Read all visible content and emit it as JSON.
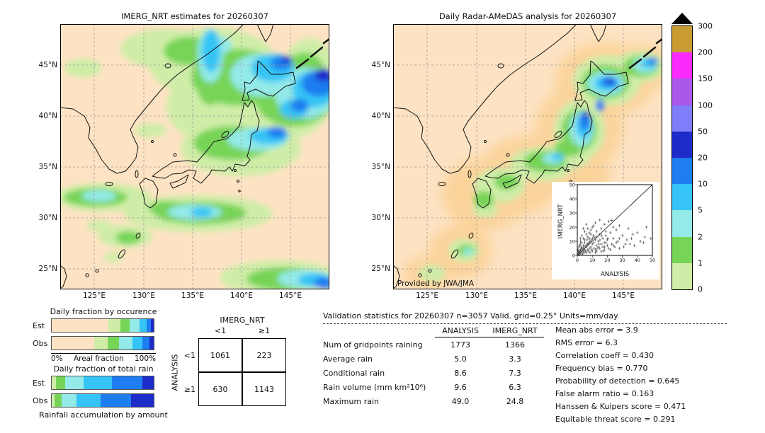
{
  "maps": {
    "background": "#fde3c3",
    "imerg": {
      "title": "IMERG_NRT estimates for 20260307"
    },
    "radar": {
      "title": "Daily Radar-AMeDAS analysis for 20260307",
      "attribution": "Provided by JWA/JMA"
    },
    "yticks": [
      "45°N",
      "40°N",
      "35°N",
      "30°N",
      "25°N"
    ],
    "xticks": [
      "125°E",
      "130°E",
      "135°E",
      "140°E",
      "145°E"
    ]
  },
  "colorbar": {
    "labels": [
      "300",
      "200",
      "150",
      "100",
      "50",
      "20",
      "10",
      "5",
      "2",
      "1",
      "0"
    ],
    "colors": [
      "#c99b33",
      "#fb2cfb",
      "#a958e8",
      "#7e7efa",
      "#1d2bc9",
      "#1e7df0",
      "#35c4f5",
      "#93eae8",
      "#77d457",
      "#cfeda7"
    ],
    "overflow_color": "#000000"
  },
  "inset": {
    "xlabel": "ANALYSIS",
    "ylabel": "IMERG_NRT",
    "ticks": [
      0,
      10,
      20,
      30,
      40,
      50
    ]
  },
  "fraction_charts": {
    "axis": {
      "left": "0%",
      "center": "Areal fraction",
      "right": "100%"
    },
    "footer": "Rainfall accumulation by amount"
  },
  "validation": {
    "title": "Validation statistics for 20260307  n=3057 Valid. grid=0.25° Units=mm/day",
    "scores": [
      {
        "label": "Mean abs error",
        "value": "3.9"
      },
      {
        "label": "RMS error",
        "value": "6.3"
      },
      {
        "label": "Correlation coeff",
        "value": "0.430"
      },
      {
        "label": "Frequency bias",
        "value": "0.770"
      },
      {
        "label": "Probability of detection",
        "value": "0.645"
      },
      {
        "label": "False alarm ratio",
        "value": "0.163"
      },
      {
        "label": "Hanssen & Kuipers score",
        "value": "0.471"
      },
      {
        "label": "Equitable threat score",
        "value": "0.291"
      }
    ]
  },
  "chart_data": [
    {
      "type": "table",
      "name": "contingency_table_gridpoints",
      "col_group": "IMERG_NRT",
      "row_group": "ANALYSIS",
      "cols": [
        "<1",
        "≥1"
      ],
      "rows": [
        "<1",
        "≥1"
      ],
      "values": [
        [
          1061,
          223
        ],
        [
          630,
          1143
        ]
      ]
    },
    {
      "type": "table",
      "name": "validation_statistics",
      "columns": [
        "ANALYSIS",
        "IMERG_NRT"
      ],
      "rows": [
        [
          "Num of gridpoints raining",
          "1773",
          "1366"
        ],
        [
          "Average rain",
          "5.0",
          "3.3"
        ],
        [
          "Conditional rain",
          "8.6",
          "7.3"
        ],
        [
          "Rain volume (mm km²10⁶)",
          "9.6",
          "6.3"
        ],
        [
          "Maximum rain",
          "49.0",
          "24.8"
        ]
      ]
    },
    {
      "type": "bar",
      "name": "daily_fraction_by_occurrence",
      "title": "Daily fraction by occurence",
      "stacked": true,
      "orientation": "horizontal",
      "categories": [
        "Est",
        "Obs"
      ],
      "xlabel": "Areal fraction",
      "xlim": [
        0,
        100
      ],
      "series": [
        {
          "name": "<1",
          "color": "#fde3c3",
          "values": [
            55.3,
            42.0
          ]
        },
        {
          "name": "1-2",
          "color": "#cfeda7",
          "values": [
            12,
            13
          ]
        },
        {
          "name": "2-5",
          "color": "#77d457",
          "values": [
            9,
            11
          ]
        },
        {
          "name": "5-10",
          "color": "#93eae8",
          "values": [
            10,
            13
          ]
        },
        {
          "name": "10-20",
          "color": "#35c4f5",
          "values": [
            7,
            10
          ]
        },
        {
          "name": "20-50",
          "color": "#1e7df0",
          "values": [
            4,
            7
          ]
        },
        {
          "name": ">50",
          "color": "#1d2bc9",
          "values": [
            2.7,
            4
          ]
        }
      ]
    },
    {
      "type": "bar",
      "name": "daily_fraction_of_total_rain",
      "title": "Daily fraction of total rain",
      "stacked": true,
      "orientation": "horizontal",
      "categories": [
        "Est",
        "Obs"
      ],
      "xlim": [
        0,
        100
      ],
      "series": [
        {
          "name": "1-2",
          "color": "#cfeda7",
          "values": [
            4,
            3
          ]
        },
        {
          "name": "2-5",
          "color": "#77d457",
          "values": [
            9,
            7
          ]
        },
        {
          "name": "5-10",
          "color": "#93eae8",
          "values": [
            18,
            14
          ]
        },
        {
          "name": "10-20",
          "color": "#35c4f5",
          "values": [
            28,
            24
          ]
        },
        {
          "name": "20-50",
          "color": "#1e7df0",
          "values": [
            30,
            30
          ]
        },
        {
          "name": ">50",
          "color": "#1d2bc9",
          "values": [
            11,
            22
          ]
        }
      ]
    },
    {
      "type": "scatter",
      "name": "radar_vs_imerg_scatter",
      "xlabel": "ANALYSIS",
      "ylabel": "IMERG_NRT",
      "xlim": [
        0,
        50
      ],
      "ylim": [
        0,
        50
      ],
      "identity_line": true,
      "points": [
        [
          0.5,
          1
        ],
        [
          1,
          0.5
        ],
        [
          1,
          3
        ],
        [
          1.5,
          2
        ],
        [
          2,
          1
        ],
        [
          2,
          4
        ],
        [
          2.5,
          6
        ],
        [
          3,
          2
        ],
        [
          3,
          5
        ],
        [
          3.5,
          1
        ],
        [
          4,
          3
        ],
        [
          4,
          7
        ],
        [
          4.5,
          2
        ],
        [
          5,
          4
        ],
        [
          5,
          9
        ],
        [
          5.5,
          3
        ],
        [
          6,
          2
        ],
        [
          6,
          6
        ],
        [
          6.5,
          11
        ],
        [
          7,
          4
        ],
        [
          7,
          8
        ],
        [
          7.5,
          3
        ],
        [
          8,
          5
        ],
        [
          8,
          12
        ],
        [
          8.5,
          2
        ],
        [
          9,
          6
        ],
        [
          9,
          10
        ],
        [
          9.5,
          4
        ],
        [
          10,
          3
        ],
        [
          10,
          8
        ],
        [
          10.5,
          14
        ],
        [
          11,
          5
        ],
        [
          11,
          9
        ],
        [
          12,
          4
        ],
        [
          12,
          11
        ],
        [
          12.5,
          7
        ],
        [
          13,
          3
        ],
        [
          13,
          13
        ],
        [
          14,
          6
        ],
        [
          14,
          10
        ],
        [
          15,
          5
        ],
        [
          15,
          15
        ],
        [
          16,
          8
        ],
        [
          16,
          3
        ],
        [
          17,
          12
        ],
        [
          17,
          6
        ],
        [
          18,
          4
        ],
        [
          18,
          9
        ],
        [
          19,
          14
        ],
        [
          20,
          7
        ],
        [
          20,
          11
        ],
        [
          21,
          5
        ],
        [
          22,
          16
        ],
        [
          23,
          8
        ],
        [
          24,
          12
        ],
        [
          25,
          6
        ],
        [
          26,
          18
        ],
        [
          27,
          10
        ],
        [
          28,
          5
        ],
        [
          30,
          14
        ],
        [
          32,
          8
        ],
        [
          34,
          19
        ],
        [
          36,
          12
        ],
        [
          38,
          7
        ],
        [
          40,
          16
        ],
        [
          42,
          10
        ],
        [
          45,
          13
        ],
        [
          3,
          14
        ],
        [
          5,
          17
        ],
        [
          7,
          19
        ],
        [
          2,
          10
        ],
        [
          4,
          12
        ],
        [
          6,
          15
        ],
        [
          9,
          18
        ],
        [
          11,
          21
        ],
        [
          13,
          17
        ],
        [
          1,
          6
        ],
        [
          2,
          8
        ],
        [
          0.5,
          4
        ],
        [
          1.5,
          7
        ],
        [
          8,
          16
        ],
        [
          10,
          20
        ],
        [
          12,
          23
        ],
        [
          15,
          25
        ],
        [
          18,
          22
        ],
        [
          21,
          24
        ],
        [
          6,
          22
        ],
        [
          4,
          19
        ],
        [
          28,
          21
        ],
        [
          24,
          20
        ],
        [
          2,
          12
        ],
        [
          3,
          9
        ],
        [
          5,
          11
        ],
        [
          7,
          13
        ],
        [
          9,
          15
        ],
        [
          16,
          19
        ],
        [
          19,
          17
        ],
        [
          0.8,
          2.5
        ],
        [
          1.2,
          1.8
        ],
        [
          2.2,
          3.2
        ],
        [
          3.3,
          4.5
        ],
        [
          4.1,
          5.5
        ],
        [
          5.2,
          6.5
        ],
        [
          6.3,
          7.5
        ],
        [
          7.4,
          8.5
        ],
        [
          8.2,
          9.5
        ],
        [
          9.1,
          11
        ],
        [
          10.2,
          12
        ],
        [
          11.3,
          13
        ],
        [
          12.1,
          2
        ],
        [
          13.2,
          5
        ],
        [
          14.3,
          8
        ],
        [
          15.1,
          11
        ],
        [
          16.2,
          14
        ],
        [
          17.3,
          3
        ],
        [
          18.1,
          6
        ],
        [
          19.2,
          9
        ],
        [
          20.3,
          12
        ],
        [
          22,
          4
        ],
        [
          24,
          7
        ],
        [
          26,
          9
        ],
        [
          28,
          12
        ],
        [
          31,
          6
        ],
        [
          33,
          11
        ],
        [
          35,
          8
        ],
        [
          37,
          15
        ],
        [
          44,
          9
        ],
        [
          49,
          12
        ],
        [
          46,
          20
        ],
        [
          23,
          24.8
        ]
      ]
    }
  ]
}
